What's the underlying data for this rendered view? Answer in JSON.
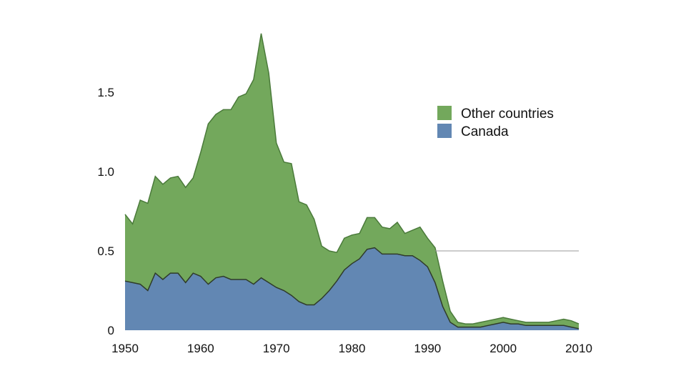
{
  "chart_data": {
    "type": "area",
    "stacked": true,
    "title": "",
    "xlabel": "",
    "ylabel": "",
    "xlim": [
      1950,
      2010
    ],
    "ylim": [
      0,
      1.9
    ],
    "x_ticks": [
      "1950",
      "1960",
      "1970",
      "1980",
      "1990",
      "2000",
      "2010"
    ],
    "y_ticks": [
      "0",
      "0.5",
      "1.0",
      "1.5"
    ],
    "grid": false,
    "reference_line": {
      "y": 0.5,
      "from_x": 1991,
      "to_x": 2010
    },
    "legend": {
      "placement": "top-right",
      "items": [
        "Other countries",
        "Canada"
      ]
    },
    "x": [
      1950,
      1951,
      1952,
      1953,
      1954,
      1955,
      1956,
      1957,
      1958,
      1959,
      1960,
      1961,
      1962,
      1963,
      1964,
      1965,
      1966,
      1967,
      1968,
      1969,
      1970,
      1971,
      1972,
      1973,
      1974,
      1975,
      1976,
      1977,
      1978,
      1979,
      1980,
      1981,
      1982,
      1983,
      1984,
      1985,
      1986,
      1987,
      1988,
      1989,
      1990,
      1991,
      1992,
      1993,
      1994,
      1995,
      1996,
      1997,
      1998,
      1999,
      2000,
      2001,
      2002,
      2003,
      2004,
      2005,
      2006,
      2007,
      2008,
      2009,
      2010
    ],
    "series": [
      {
        "name": "Canada",
        "color": "#6287b3",
        "values": [
          0.31,
          0.3,
          0.29,
          0.25,
          0.36,
          0.32,
          0.36,
          0.36,
          0.3,
          0.36,
          0.34,
          0.29,
          0.33,
          0.34,
          0.32,
          0.32,
          0.32,
          0.29,
          0.33,
          0.3,
          0.27,
          0.25,
          0.22,
          0.18,
          0.16,
          0.16,
          0.2,
          0.25,
          0.31,
          0.38,
          0.42,
          0.45,
          0.51,
          0.52,
          0.48,
          0.48,
          0.48,
          0.47,
          0.47,
          0.44,
          0.4,
          0.3,
          0.15,
          0.05,
          0.02,
          0.02,
          0.02,
          0.02,
          0.03,
          0.04,
          0.05,
          0.04,
          0.04,
          0.03,
          0.03,
          0.03,
          0.03,
          0.03,
          0.03,
          0.02,
          0.01
        ]
      },
      {
        "name": "Other countries",
        "color": "#73a85c",
        "values": [
          0.42,
          0.37,
          0.53,
          0.55,
          0.61,
          0.6,
          0.6,
          0.61,
          0.6,
          0.6,
          0.78,
          1.01,
          1.03,
          1.05,
          1.07,
          1.15,
          1.17,
          1.29,
          1.54,
          1.32,
          0.91,
          0.81,
          0.83,
          0.63,
          0.63,
          0.54,
          0.33,
          0.25,
          0.18,
          0.2,
          0.18,
          0.16,
          0.2,
          0.19,
          0.17,
          0.16,
          0.2,
          0.14,
          0.16,
          0.21,
          0.18,
          0.22,
          0.16,
          0.07,
          0.03,
          0.02,
          0.02,
          0.03,
          0.03,
          0.03,
          0.03,
          0.03,
          0.02,
          0.02,
          0.02,
          0.02,
          0.02,
          0.03,
          0.04,
          0.04,
          0.03
        ]
      }
    ]
  }
}
